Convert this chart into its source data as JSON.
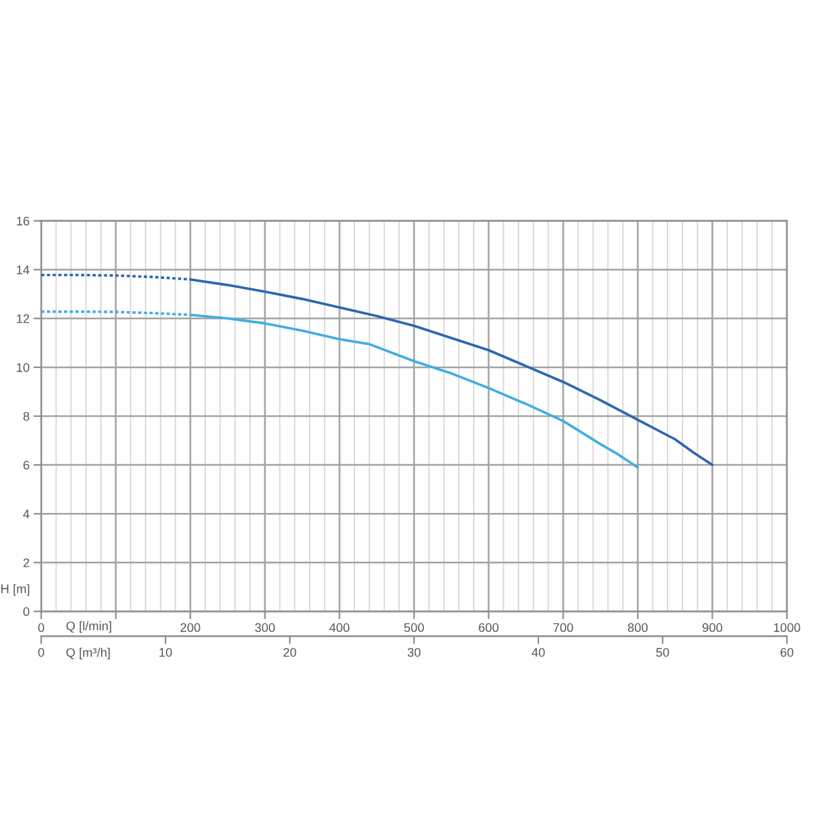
{
  "chart_data": {
    "type": "line",
    "xlabel": "Q [l/min]",
    "x2label": "Q [m³/h]",
    "ylabel": "H [m]",
    "xlim": [
      0,
      1000
    ],
    "xticks": [
      0,
      {
        "value": 100,
        "label": null
      },
      200,
      300,
      400,
      500,
      600,
      700,
      800,
      900,
      1000
    ],
    "x2lim": [
      0,
      60
    ],
    "x2ticks": [
      0,
      10,
      20,
      30,
      40,
      50,
      60
    ],
    "ylim": [
      0,
      16
    ],
    "yticks": [
      0,
      2,
      4,
      6,
      8,
      10,
      12,
      14,
      16
    ],
    "grid": true,
    "series": [
      {
        "color": "#2d66b0",
        "line_style": "dotted",
        "x": [
          0,
          50,
          100,
          150,
          200
        ],
        "values": [
          13.78,
          13.78,
          13.76,
          13.7,
          13.6
        ]
      },
      {
        "color": "#2d66b0",
        "line_style": "solid",
        "x": [
          200,
          250,
          300,
          350,
          400,
          450,
          500,
          550,
          600,
          650,
          700,
          750,
          800,
          850,
          875,
          900
        ],
        "values": [
          13.6,
          13.37,
          13.1,
          12.8,
          12.45,
          12.1,
          11.7,
          11.2,
          10.7,
          10.05,
          9.4,
          8.65,
          7.85,
          7.05,
          6.5,
          6.0
        ]
      },
      {
        "color": "#42ade2",
        "line_style": "dotted",
        "x": [
          0,
          50,
          100,
          150,
          200
        ],
        "values": [
          12.28,
          12.28,
          12.27,
          12.22,
          12.15
        ]
      },
      {
        "color": "#42ade2",
        "line_style": "solid",
        "x": [
          200,
          250,
          300,
          350,
          400,
          440,
          500,
          550,
          600,
          650,
          700,
          750,
          770,
          800
        ],
        "values": [
          12.15,
          12.0,
          11.8,
          11.5,
          11.15,
          10.95,
          10.25,
          9.75,
          9.15,
          8.5,
          7.8,
          6.85,
          6.5,
          5.9
        ]
      }
    ]
  }
}
